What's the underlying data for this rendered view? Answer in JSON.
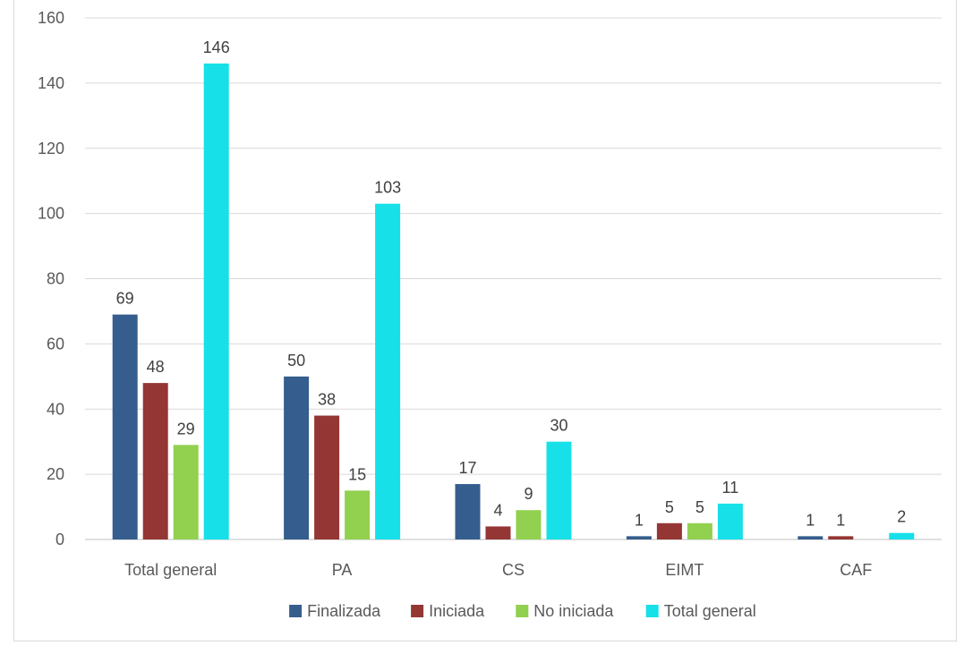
{
  "chart_data": {
    "type": "bar",
    "title": "",
    "xlabel": "",
    "ylabel": "",
    "ylim": [
      0,
      160
    ],
    "yticks": [
      0,
      20,
      40,
      60,
      80,
      100,
      120,
      140,
      160
    ],
    "grid": true,
    "legend_position": "bottom",
    "categories": [
      "Total general",
      "PA",
      "CS",
      "EIMT",
      "CAF"
    ],
    "series": [
      {
        "name": "Finalizada",
        "color": "#355e8e",
        "values": [
          69,
          50,
          17,
          1,
          1
        ],
        "labels": [
          "69",
          "50",
          "17",
          "1",
          "1"
        ]
      },
      {
        "name": "Iniciada",
        "color": "#943634",
        "values": [
          48,
          38,
          4,
          5,
          1
        ],
        "labels": [
          "48",
          "38",
          "4",
          "5",
          "1"
        ]
      },
      {
        "name": "No iniciada",
        "color": "#92d050",
        "values": [
          29,
          15,
          9,
          5,
          0
        ],
        "labels": [
          "29",
          "15",
          "9",
          "5",
          ""
        ]
      },
      {
        "name": "Total general",
        "color": "#17e0e8",
        "values": [
          146,
          103,
          30,
          11,
          2
        ],
        "labels": [
          "146",
          "103",
          "30",
          "11",
          "2"
        ]
      }
    ]
  }
}
